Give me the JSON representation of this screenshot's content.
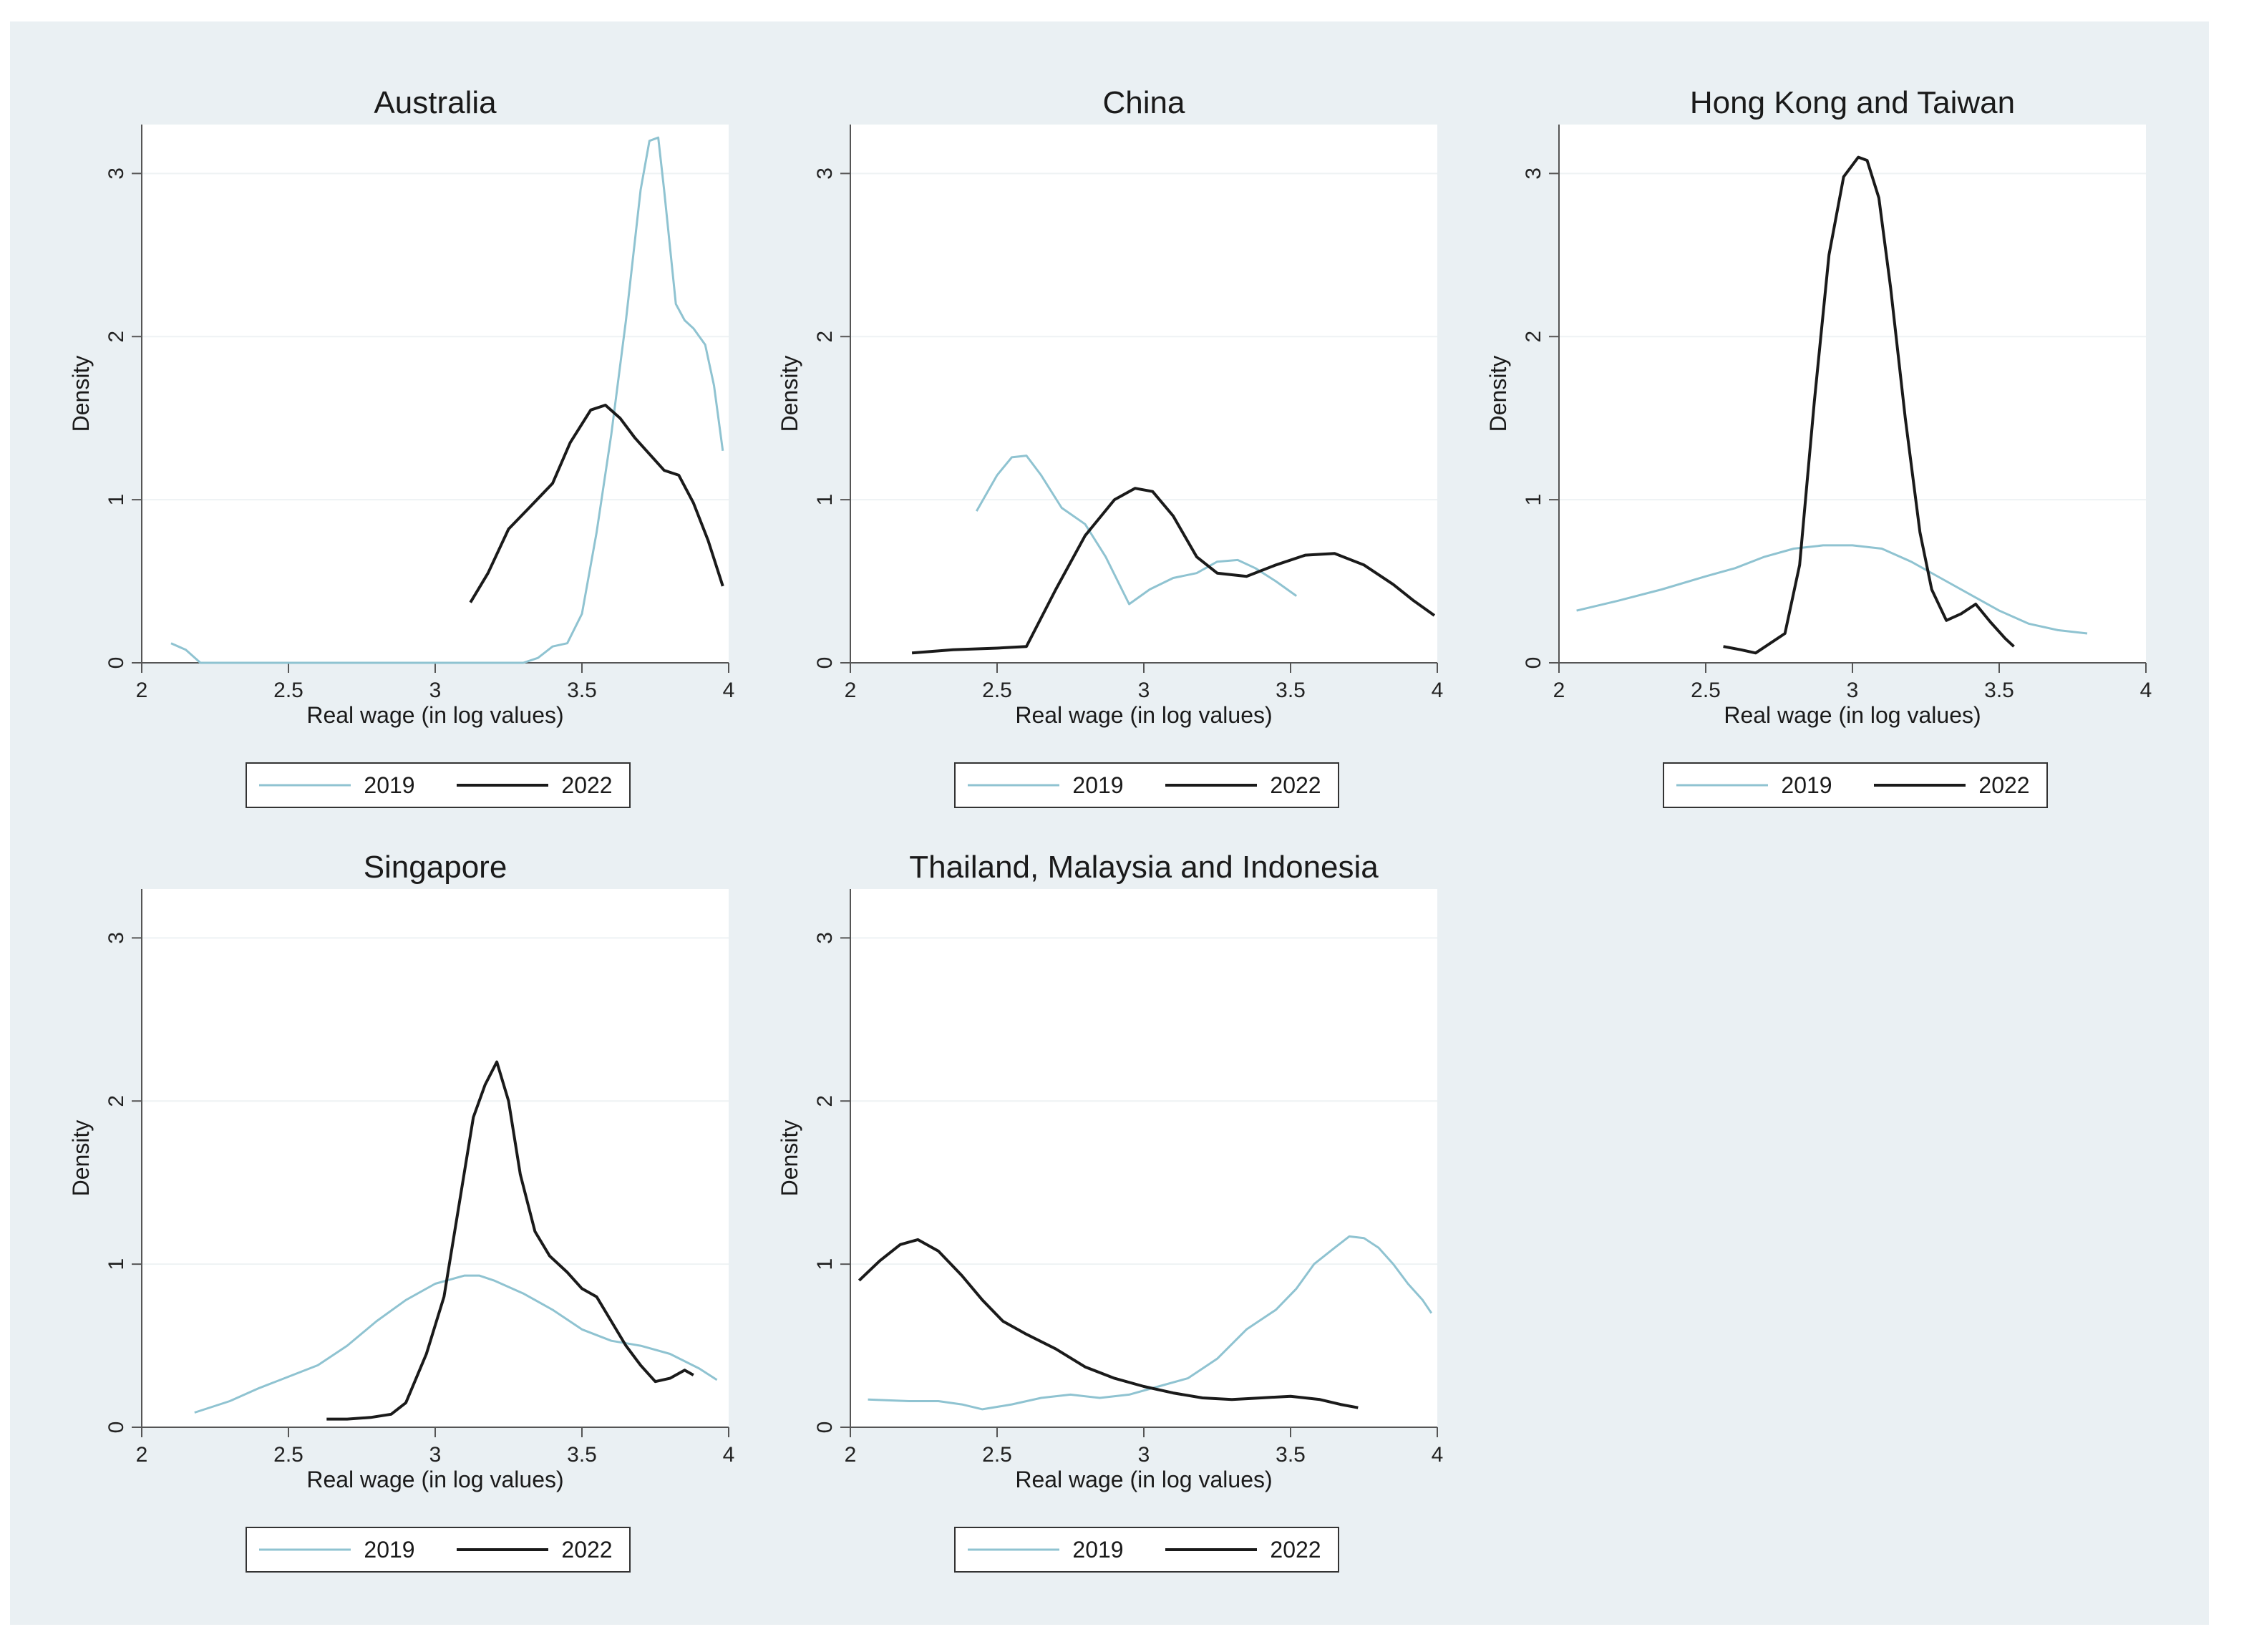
{
  "style": {
    "background": "#eaf0f3",
    "plot_background": "#ffffff",
    "grid_color": "#eef2f4",
    "axis_color": "#555555",
    "color_2019": "#8fc3d1",
    "color_2022": "#1a1a1a"
  },
  "chart_data": [
    {
      "type": "line",
      "title": "Australia",
      "xlabel": "Real wage (in log values)",
      "ylabel": "Density",
      "xlim": [
        2,
        4
      ],
      "ylim": [
        0,
        3.3
      ],
      "xticks": [
        "2",
        "2.5",
        "3",
        "3.5",
        "4"
      ],
      "yticks": [
        "0",
        "1",
        "2",
        "3"
      ],
      "grid": true,
      "legend": "bottom",
      "series": [
        {
          "name": "2019",
          "x": [
            2.1,
            2.15,
            2.2,
            2.5,
            3.0,
            3.3,
            3.35,
            3.4,
            3.45,
            3.5,
            3.55,
            3.6,
            3.65,
            3.7,
            3.73,
            3.76,
            3.78,
            3.82,
            3.85,
            3.88,
            3.92,
            3.95,
            3.98
          ],
          "y": [
            0.12,
            0.08,
            0.0,
            0.0,
            0.0,
            0.0,
            0.03,
            0.1,
            0.12,
            0.3,
            0.8,
            1.4,
            2.1,
            2.9,
            3.2,
            3.22,
            2.9,
            2.2,
            2.1,
            2.05,
            1.95,
            1.7,
            1.3
          ]
        },
        {
          "name": "2022",
          "x": [
            3.12,
            3.18,
            3.25,
            3.32,
            3.4,
            3.46,
            3.53,
            3.58,
            3.63,
            3.68,
            3.73,
            3.78,
            3.83,
            3.88,
            3.93,
            3.98
          ],
          "y": [
            0.37,
            0.55,
            0.82,
            0.95,
            1.1,
            1.35,
            1.55,
            1.58,
            1.5,
            1.38,
            1.28,
            1.18,
            1.15,
            0.98,
            0.75,
            0.47
          ]
        }
      ]
    },
    {
      "type": "line",
      "title": "China",
      "xlabel": "Real wage (in log values)",
      "ylabel": "Density",
      "xlim": [
        2,
        4
      ],
      "ylim": [
        0,
        3.3
      ],
      "xticks": [
        "2",
        "2.5",
        "3",
        "3.5",
        "4"
      ],
      "yticks": [
        "0",
        "1",
        "2",
        "3"
      ],
      "grid": true,
      "legend": "bottom",
      "series": [
        {
          "name": "2019",
          "x": [
            2.43,
            2.5,
            2.55,
            2.6,
            2.65,
            2.72,
            2.8,
            2.87,
            2.95,
            3.02,
            3.1,
            3.18,
            3.25,
            3.32,
            3.38,
            3.45,
            3.52
          ],
          "y": [
            0.93,
            1.15,
            1.26,
            1.27,
            1.15,
            0.95,
            0.85,
            0.65,
            0.36,
            0.45,
            0.52,
            0.55,
            0.62,
            0.63,
            0.58,
            0.5,
            0.41
          ]
        },
        {
          "name": "2022",
          "x": [
            2.21,
            2.35,
            2.5,
            2.6,
            2.7,
            2.8,
            2.9,
            2.97,
            3.03,
            3.1,
            3.18,
            3.25,
            3.35,
            3.45,
            3.55,
            3.65,
            3.75,
            3.85,
            3.92,
            3.99
          ],
          "y": [
            0.06,
            0.08,
            0.09,
            0.1,
            0.45,
            0.78,
            1.0,
            1.07,
            1.05,
            0.9,
            0.65,
            0.55,
            0.53,
            0.6,
            0.66,
            0.67,
            0.6,
            0.48,
            0.38,
            0.29
          ]
        }
      ]
    },
    {
      "type": "line",
      "title": "Hong Kong and Taiwan",
      "xlabel": "Real wage (in log values)",
      "ylabel": "Density",
      "xlim": [
        2,
        4
      ],
      "ylim": [
        0,
        3.3
      ],
      "xticks": [
        "2",
        "2.5",
        "3",
        "3.5",
        "4"
      ],
      "yticks": [
        "0",
        "1",
        "2",
        "3"
      ],
      "grid": true,
      "legend": "bottom",
      "series": [
        {
          "name": "2019",
          "x": [
            2.06,
            2.2,
            2.35,
            2.5,
            2.6,
            2.7,
            2.8,
            2.9,
            3.0,
            3.1,
            3.2,
            3.3,
            3.4,
            3.5,
            3.6,
            3.7,
            3.8
          ],
          "y": [
            0.32,
            0.38,
            0.45,
            0.53,
            0.58,
            0.65,
            0.7,
            0.72,
            0.72,
            0.7,
            0.62,
            0.52,
            0.42,
            0.32,
            0.24,
            0.2,
            0.18
          ]
        },
        {
          "name": "2022",
          "x": [
            2.56,
            2.62,
            2.67,
            2.72,
            2.77,
            2.82,
            2.87,
            2.92,
            2.97,
            3.02,
            3.05,
            3.09,
            3.13,
            3.18,
            3.23,
            3.27,
            3.32,
            3.37,
            3.42,
            3.47,
            3.52,
            3.55
          ],
          "y": [
            0.1,
            0.08,
            0.06,
            0.12,
            0.18,
            0.6,
            1.6,
            2.5,
            2.98,
            3.1,
            3.08,
            2.85,
            2.3,
            1.5,
            0.8,
            0.45,
            0.26,
            0.3,
            0.36,
            0.25,
            0.15,
            0.1
          ]
        }
      ]
    },
    {
      "type": "line",
      "title": "Singapore",
      "xlabel": "Real wage (in log values)",
      "ylabel": "Density",
      "xlim": [
        2,
        4
      ],
      "ylim": [
        0,
        3.3
      ],
      "xticks": [
        "2",
        "2.5",
        "3",
        "3.5",
        "4"
      ],
      "yticks": [
        "0",
        "1",
        "2",
        "3"
      ],
      "grid": true,
      "legend": "bottom",
      "series": [
        {
          "name": "2019",
          "x": [
            2.18,
            2.3,
            2.4,
            2.5,
            2.6,
            2.7,
            2.8,
            2.9,
            3.0,
            3.1,
            3.15,
            3.2,
            3.3,
            3.4,
            3.5,
            3.6,
            3.7,
            3.8,
            3.9,
            3.96
          ],
          "y": [
            0.09,
            0.16,
            0.24,
            0.31,
            0.38,
            0.5,
            0.65,
            0.78,
            0.88,
            0.93,
            0.93,
            0.9,
            0.82,
            0.72,
            0.6,
            0.53,
            0.5,
            0.45,
            0.36,
            0.29
          ]
        },
        {
          "name": "2022",
          "x": [
            2.63,
            2.7,
            2.78,
            2.85,
            2.9,
            2.97,
            3.03,
            3.08,
            3.13,
            3.17,
            3.21,
            3.25,
            3.29,
            3.34,
            3.39,
            3.45,
            3.5,
            3.55,
            3.6,
            3.65,
            3.7,
            3.75,
            3.8,
            3.85,
            3.88
          ],
          "y": [
            0.05,
            0.05,
            0.06,
            0.08,
            0.15,
            0.45,
            0.8,
            1.35,
            1.9,
            2.1,
            2.24,
            2.0,
            1.55,
            1.2,
            1.05,
            0.95,
            0.85,
            0.8,
            0.65,
            0.5,
            0.38,
            0.28,
            0.3,
            0.35,
            0.32
          ]
        }
      ]
    },
    {
      "type": "line",
      "title": "Thailand, Malaysia and Indonesia",
      "xlabel": "Real wage (in log values)",
      "ylabel": "Density",
      "xlim": [
        2,
        4
      ],
      "ylim": [
        0,
        3.3
      ],
      "xticks": [
        "2",
        "2.5",
        "3",
        "3.5",
        "4"
      ],
      "yticks": [
        "0",
        "1",
        "2",
        "3"
      ],
      "grid": true,
      "legend": "bottom",
      "series": [
        {
          "name": "2019",
          "x": [
            2.06,
            2.2,
            2.3,
            2.38,
            2.45,
            2.55,
            2.65,
            2.75,
            2.85,
            2.95,
            3.05,
            3.15,
            3.25,
            3.35,
            3.45,
            3.52,
            3.58,
            3.65,
            3.7,
            3.75,
            3.8,
            3.85,
            3.9,
            3.95,
            3.98
          ],
          "y": [
            0.17,
            0.16,
            0.16,
            0.14,
            0.11,
            0.14,
            0.18,
            0.2,
            0.18,
            0.2,
            0.25,
            0.3,
            0.42,
            0.6,
            0.72,
            0.85,
            1.0,
            1.1,
            1.17,
            1.16,
            1.1,
            1.0,
            0.88,
            0.78,
            0.7
          ]
        },
        {
          "name": "2022",
          "x": [
            2.03,
            2.1,
            2.17,
            2.23,
            2.3,
            2.38,
            2.45,
            2.52,
            2.6,
            2.7,
            2.8,
            2.9,
            3.0,
            3.1,
            3.2,
            3.3,
            3.4,
            3.5,
            3.6,
            3.67,
            3.73
          ],
          "y": [
            0.9,
            1.02,
            1.12,
            1.15,
            1.08,
            0.93,
            0.78,
            0.65,
            0.57,
            0.48,
            0.37,
            0.3,
            0.25,
            0.21,
            0.18,
            0.17,
            0.18,
            0.19,
            0.17,
            0.14,
            0.12
          ]
        }
      ]
    }
  ]
}
